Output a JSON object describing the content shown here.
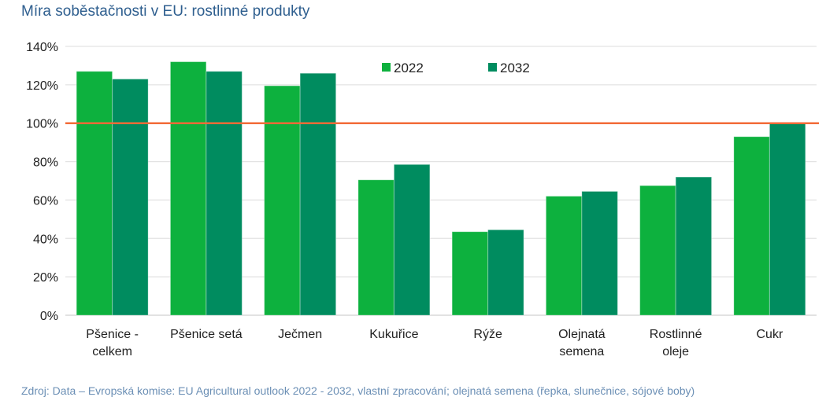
{
  "chart_data": {
    "type": "bar",
    "title": "Míra soběstačnosti v EU: rostlinné produkty",
    "categories": [
      [
        "Pšenice -",
        "celkem"
      ],
      [
        "Pšenice setá"
      ],
      [
        "Ječmen"
      ],
      [
        "Kukuřice"
      ],
      [
        "Rýže"
      ],
      [
        "Olejnatá",
        "semena"
      ],
      [
        "Rostlinné",
        "oleje"
      ],
      [
        "Cukr"
      ]
    ],
    "series": [
      {
        "name": "2022",
        "color": "#0db13e",
        "values": [
          127,
          132,
          119.5,
          70.5,
          43.5,
          62,
          67.5,
          93
        ]
      },
      {
        "name": "2032",
        "color": "#008c5f",
        "values": [
          123,
          127,
          126,
          78.5,
          44.5,
          64.5,
          72,
          100
        ]
      }
    ],
    "yticks": [
      "0%",
      "20%",
      "40%",
      "60%",
      "80%",
      "100%",
      "120%",
      "140%"
    ],
    "ylim": [
      0,
      140
    ],
    "reference_line": {
      "value": 100,
      "color": "#f26b38"
    },
    "legend": "top-center",
    "grid": true,
    "xlabel": "",
    "ylabel": "",
    "source": "Zdroj: Data – Evropská komise: EU Agricultural outlook 2022 - 2032, vlastní zpracování; olejnatá semena (řepka, slunečnice, sójové boby)"
  }
}
